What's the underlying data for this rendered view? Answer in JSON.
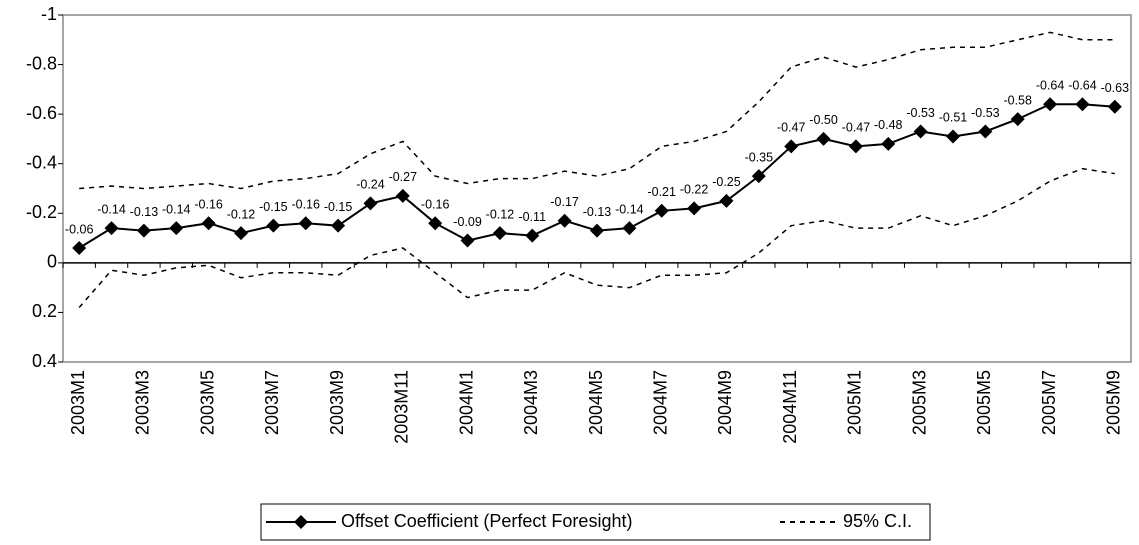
{
  "chart_data": {
    "type": "line",
    "inverted_y": true,
    "categories": [
      "2003M1",
      null,
      "2003M3",
      null,
      "2003M5",
      null,
      "2003M7",
      null,
      "2003M9",
      null,
      "2003M11",
      null,
      "2004M1",
      null,
      "2004M3",
      null,
      "2004M5",
      null,
      "2004M7",
      null,
      "2004M9",
      null,
      "2004M11",
      null,
      "2005M1",
      null,
      "2005M3",
      null,
      "2005M5",
      null,
      "2005M7",
      null,
      "2005M9"
    ],
    "series": [
      {
        "name": "Offset Coefficient (Perfect Foresight)",
        "color": "#000000",
        "marker": "diamond",
        "values": [
          -0.06,
          -0.14,
          -0.13,
          -0.14,
          -0.16,
          -0.12,
          -0.15,
          -0.16,
          -0.15,
          -0.24,
          -0.27,
          -0.16,
          -0.09,
          -0.12,
          -0.11,
          -0.17,
          -0.13,
          -0.14,
          -0.21,
          -0.22,
          -0.25,
          -0.35,
          -0.47,
          -0.5,
          -0.47,
          -0.48,
          -0.53,
          -0.51,
          -0.53,
          -0.58,
          -0.64,
          -0.64,
          -0.63
        ],
        "value_labels": [
          "-0.06",
          "-0.14",
          "-0.13",
          "-0.14",
          "-0.16",
          "-0.12",
          "-0.15",
          "-0.16",
          "-0.15",
          "-0.24",
          "-0.27",
          "-0.16",
          "-0.09",
          "-0.12",
          "-0.11",
          "-0.17",
          "-0.13",
          "-0.14",
          "-0.21",
          "-0.22",
          "-0.25",
          "-0.35",
          "-0.47",
          "-0.50",
          "-0.47",
          "-0.48",
          "-0.53",
          "-0.51",
          "-0.53",
          "-0.58",
          "-0.64",
          "-0.64",
          "-0.63"
        ]
      },
      {
        "name": "95% C.I.",
        "color": "#000000",
        "dashed": true,
        "values": [
          -0.3,
          -0.31,
          -0.3,
          -0.31,
          -0.32,
          -0.3,
          -0.33,
          -0.34,
          -0.36,
          -0.44,
          -0.49,
          -0.35,
          -0.32,
          -0.34,
          -0.34,
          -0.37,
          -0.35,
          -0.38,
          -0.47,
          -0.49,
          -0.53,
          -0.65,
          -0.79,
          -0.83,
          -0.79,
          -0.82,
          -0.86,
          -0.87,
          -0.87,
          -0.9,
          -0.93,
          -0.9,
          -0.9
        ],
        "values_low": [
          0.18,
          0.03,
          0.05,
          0.02,
          0.01,
          0.06,
          0.04,
          0.04,
          0.05,
          -0.03,
          -0.06,
          0.04,
          0.14,
          0.11,
          0.11,
          0.04,
          0.09,
          0.1,
          0.05,
          0.05,
          0.04,
          -0.04,
          -0.15,
          -0.17,
          -0.14,
          -0.14,
          -0.19,
          -0.15,
          -0.19,
          -0.25,
          -0.33,
          -0.38,
          -0.36
        ]
      }
    ],
    "ylim": [
      -1,
      0.4
    ],
    "yticks": [
      -1,
      -0.8,
      -0.6,
      -0.4,
      -0.2,
      0,
      0.2,
      0.4
    ],
    "grid": false
  }
}
